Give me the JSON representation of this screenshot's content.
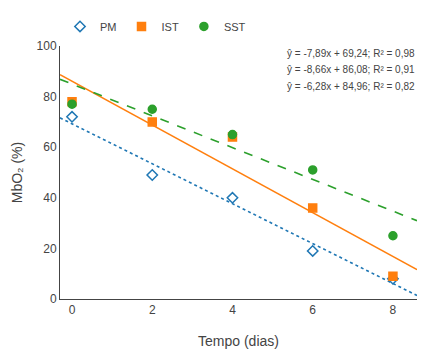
{
  "chart_data": {
    "type": "scatter",
    "xlabel": "Tempo (dias)",
    "ylabel": "MbO₂ (%)",
    "xlim": [
      -0.3,
      8.6
    ],
    "ylim": [
      0,
      100
    ],
    "xticks": [
      0,
      2,
      4,
      6,
      8
    ],
    "yticks": [
      0,
      20,
      40,
      60,
      80,
      100
    ],
    "grid": false,
    "legend": "top",
    "series": [
      {
        "name": "PM",
        "color": "#1f77b4",
        "marker": "diamond-open",
        "line_style": "dotted",
        "x": [
          0,
          2,
          4,
          6,
          8
        ],
        "values": [
          72,
          49,
          40,
          19,
          8
        ],
        "fit": {
          "x": [
            -0.3,
            8.6
          ],
          "values": [
            71.607,
            1.386
          ]
        }
      },
      {
        "name": "IST",
        "color": "#ff7f0e",
        "marker": "square",
        "line_style": "solid",
        "x": [
          0,
          2,
          4,
          6,
          8
        ],
        "values": [
          78,
          70,
          64,
          36,
          9
        ],
        "fit": {
          "x": [
            -0.3,
            8.6
          ],
          "values": [
            88.678,
            11.604
          ]
        }
      },
      {
        "name": "SST",
        "color": "#2ca02c",
        "marker": "circle",
        "line_style": "dashed",
        "x": [
          0,
          2,
          4,
          6,
          8
        ],
        "values": [
          77,
          75,
          65,
          51,
          25
        ],
        "fit": {
          "x": [
            -0.3,
            8.6
          ],
          "values": [
            86.844,
            30.952
          ]
        }
      }
    ],
    "annotations": [
      "ŷ = -7,89x + 69,24; R² = 0,98",
      "ŷ = -8,66x + 86,08; R² = 0,91",
      "ŷ = -6,28x + 84,96; R² = 0,82"
    ]
  }
}
